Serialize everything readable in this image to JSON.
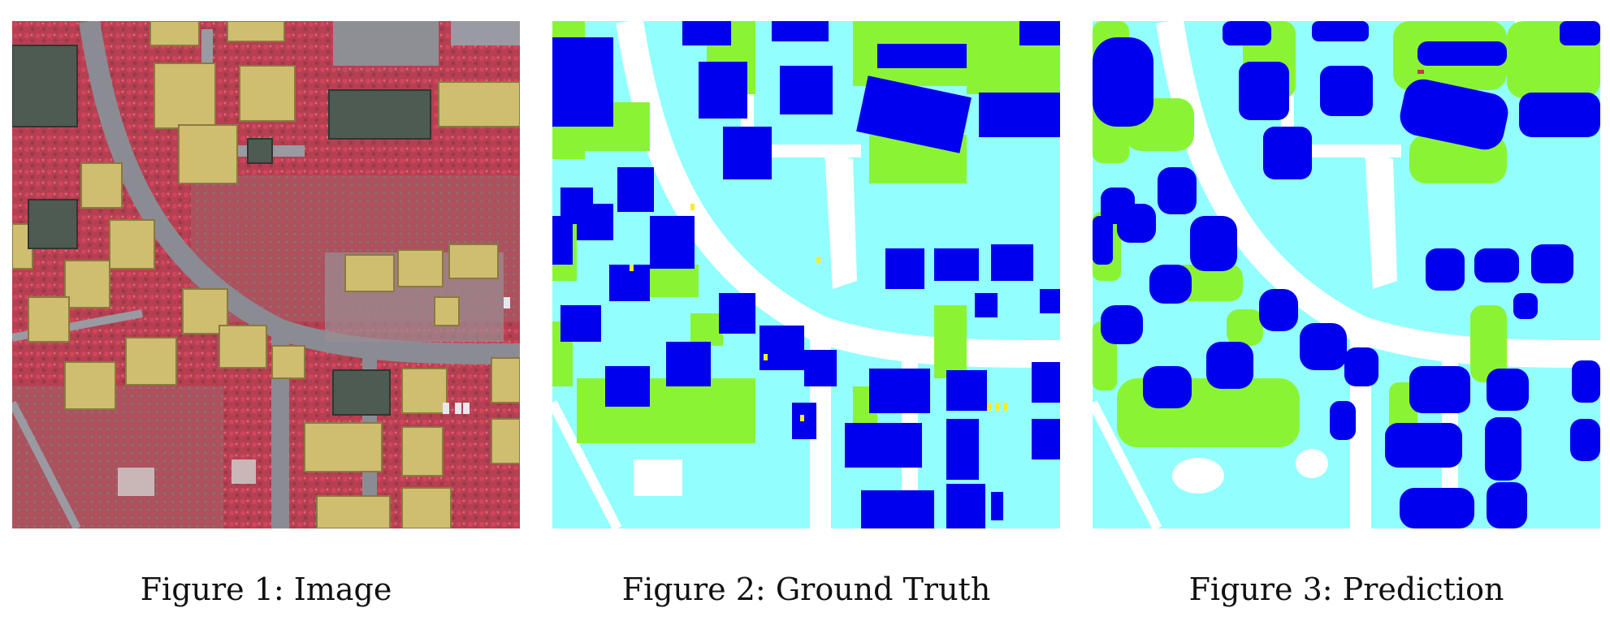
{
  "figures": [
    {
      "caption": "Figure 1: Image"
    },
    {
      "caption": "Figure 2: Ground Truth"
    },
    {
      "caption": "Figure 3: Prediction"
    }
  ],
  "colors": {
    "building": "#0000ee",
    "low_vegetation": "#93fefe",
    "tree": "#8af434",
    "impervious_surface": "#ffffff",
    "car": "#f5ed2b",
    "ir_vegetation": "#c8364a",
    "ir_road": "#8c8c94",
    "ir_roof": "#cdbb6e",
    "ir_dark_roof": "#4d5a52"
  }
}
